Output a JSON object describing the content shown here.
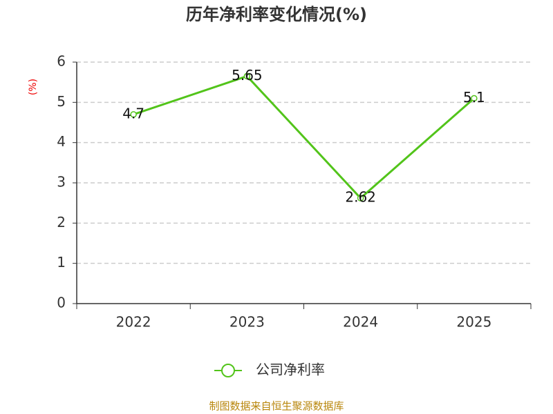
{
  "chart_data": {
    "type": "line",
    "title": "历年净利率变化情况(%)",
    "ylabel": "(%)",
    "categories": [
      "2022",
      "2023",
      "2024",
      "2025"
    ],
    "series": [
      {
        "name": "公司净利率",
        "color": "#52c41a",
        "values": [
          4.7,
          5.65,
          2.62,
          5.1
        ]
      }
    ],
    "ylim": [
      0,
      6
    ],
    "yticks": [
      0,
      1,
      2,
      3,
      4,
      5,
      6
    ],
    "grid": true,
    "legend": "bottom",
    "source": "制图数据来自恒生聚源数据库"
  }
}
